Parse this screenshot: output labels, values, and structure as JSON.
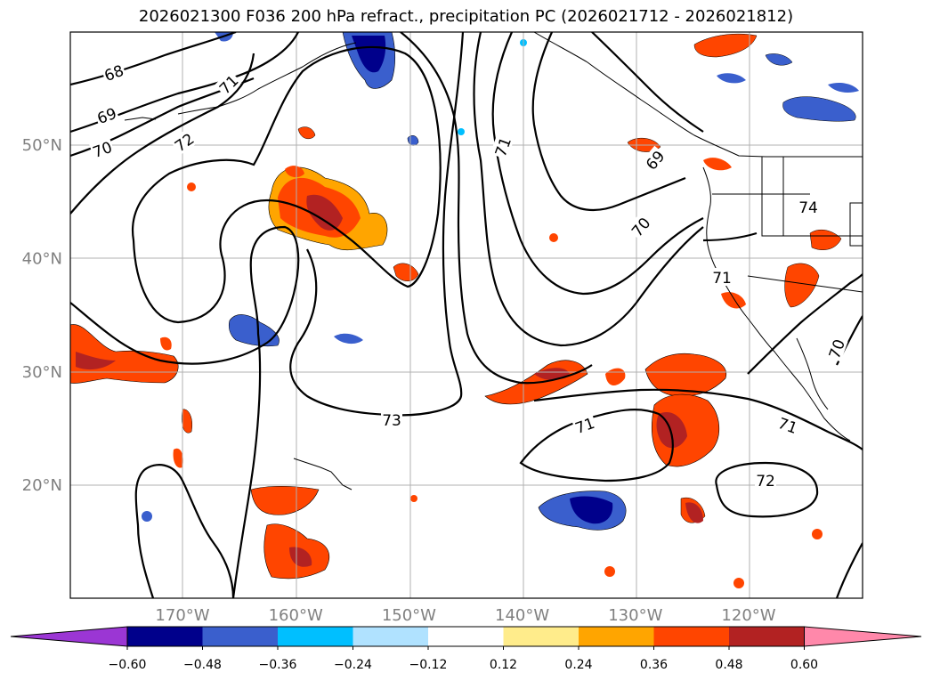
{
  "title": "2026021300 F036 200 hPa refract., precipitation PC (2026021712 - 2026021812)",
  "map": {
    "lon_ticks": [
      {
        "lon": -170,
        "label": "170°W"
      },
      {
        "lon": -160,
        "label": "160°W"
      },
      {
        "lon": -150,
        "label": "150°W"
      },
      {
        "lon": -140,
        "label": "140°W"
      },
      {
        "lon": -130,
        "label": "130°W"
      },
      {
        "lon": -120,
        "label": "120°W"
      }
    ],
    "lat_ticks": [
      {
        "lat": 50,
        "label": "50°N"
      },
      {
        "lat": 40,
        "label": "40°N"
      },
      {
        "lat": 30,
        "label": "30°N"
      },
      {
        "lat": 20,
        "label": "20°N"
      }
    ],
    "contour_labels": [
      "68",
      "69",
      "70",
      "71",
      "72",
      "73",
      "74",
      "71",
      "70",
      "71",
      "72",
      "71",
      "70",
      "69",
      "71"
    ]
  },
  "colorbar": {
    "ticks": [
      "−0.60",
      "−0.48",
      "−0.36",
      "−0.24",
      "−0.12",
      "0.12",
      "0.24",
      "0.36",
      "0.48",
      "0.60"
    ],
    "colors": [
      "#9b36d4",
      "#00008b",
      "#3a5fcd",
      "#00bfff",
      "#b0e2ff",
      "#ffffff",
      "#ffec8b",
      "#ffa500",
      "#ff4500",
      "#b22222",
      "#ff88aa"
    ]
  }
}
